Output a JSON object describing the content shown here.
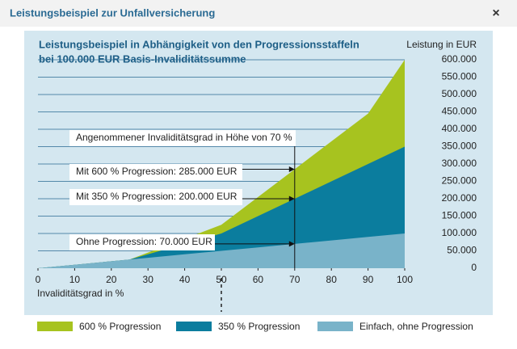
{
  "dialog": {
    "title": "Leistungsbeispiel zur Unfallversicherung",
    "close": "×"
  },
  "chart_data": {
    "type": "area",
    "title": [
      "Leistungsbeispiel in Abhängigkeit von den Progressionsstaffeln",
      "bei 100.000 EUR Basis-Invaliditätssumme"
    ],
    "y_label": "Leistung in EUR",
    "x_label": "Invaliditätsgrad in %",
    "x": [
      0,
      10,
      20,
      25,
      30,
      40,
      50,
      60,
      70,
      80,
      90,
      100
    ],
    "series": [
      {
        "name": "600 % Progression",
        "color": "#a7c31f",
        "values": [
          0,
          10000,
          20000,
          25000,
          45000,
          85000,
          125000,
          205000,
          285000,
          365000,
          445000,
          600000
        ]
      },
      {
        "name": "350 % Progression",
        "color": "#0b7d9e",
        "values": [
          0,
          10000,
          20000,
          25000,
          40000,
          70000,
          100000,
          150000,
          200000,
          250000,
          300000,
          350000
        ]
      },
      {
        "name": "Einfach, ohne Progression",
        "color": "#79b3c9",
        "values": [
          0,
          10000,
          20000,
          25000,
          30000,
          40000,
          50000,
          60000,
          70000,
          80000,
          90000,
          100000
        ]
      }
    ],
    "xlim": [
      0,
      100
    ],
    "xticks": [
      0,
      10,
      20,
      30,
      40,
      50,
      60,
      70,
      80,
      90,
      100
    ],
    "ylim": [
      0,
      600000
    ],
    "yticks": [
      0,
      {
        "value": 50000,
        "label": "50.000"
      },
      {
        "value": 100000,
        "label": "100.000"
      },
      {
        "value": 150000,
        "label": "150.000"
      },
      {
        "value": 200000,
        "label": "200.000"
      },
      {
        "value": 250000,
        "label": "250.000"
      },
      {
        "value": 300000,
        "label": "300.000"
      },
      {
        "value": 350000,
        "label": "350.000"
      },
      {
        "value": 400000,
        "label": "400.000"
      },
      {
        "value": 450000,
        "label": "450.000"
      },
      {
        "value": 500000,
        "label": "500.000"
      },
      {
        "value": 550000,
        "label": "550.000"
      },
      {
        "value": 600000,
        "label": "600.000"
      }
    ],
    "grid": true,
    "annotations": [
      "Angenommener Invaliditätsgrad in Höhe von 70 %",
      "Mit 600 % Progression: 285.000 EUR",
      "Mit 350 % Progression: 200.000 EUR",
      "Ohne Progression: 70.000 EUR"
    ]
  }
}
